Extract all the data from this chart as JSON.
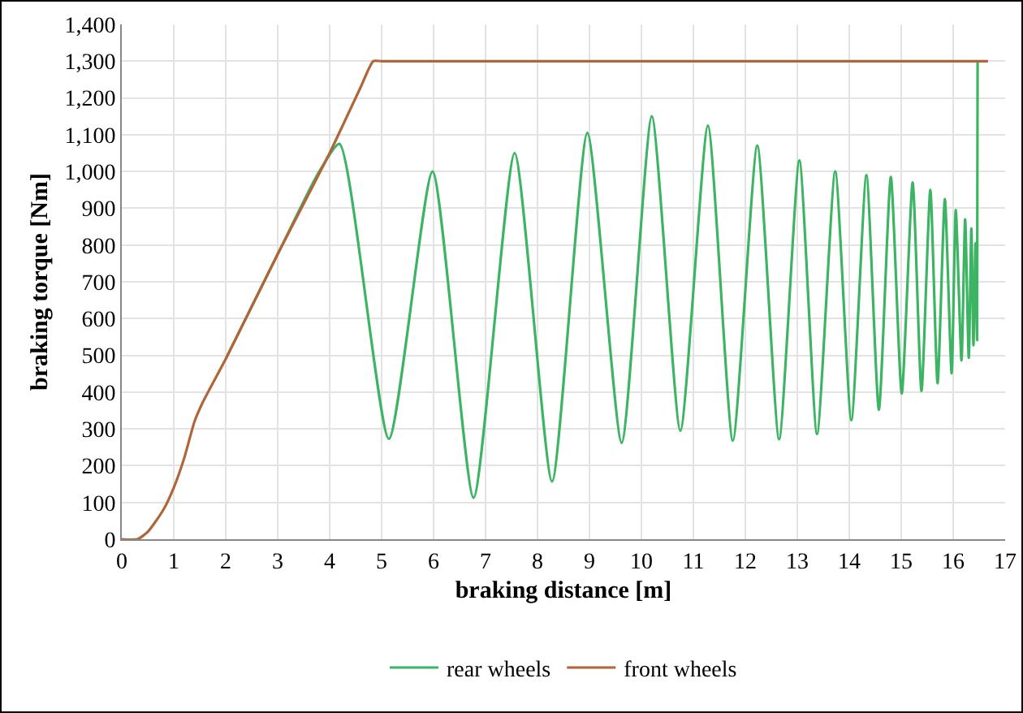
{
  "chart_data": {
    "type": "line",
    "xlabel": "braking distance [m]",
    "ylabel": "braking torque [Nm]",
    "xlim": [
      0,
      17
    ],
    "xticks": [
      0,
      1,
      2,
      3,
      4,
      5,
      6,
      7,
      8,
      9,
      10,
      11,
      12,
      13,
      14,
      15,
      16,
      17
    ],
    "ylim": [
      0,
      1400
    ],
    "yticks": [
      {
        "value": 0,
        "label": "0"
      },
      {
        "value": 100,
        "label": "100"
      },
      {
        "value": 200,
        "label": "200"
      },
      {
        "value": 300,
        "label": "300"
      },
      {
        "value": 400,
        "label": "400"
      },
      {
        "value": 500,
        "label": "500"
      },
      {
        "value": 600,
        "label": "600"
      },
      {
        "value": 700,
        "label": "700"
      },
      {
        "value": 800,
        "label": "800"
      },
      {
        "value": 900,
        "label": "900"
      },
      {
        "value": 1000,
        "label": "1,000"
      },
      {
        "value": 1100,
        "label": "1,100"
      },
      {
        "value": 1200,
        "label": "1,200"
      },
      {
        "value": 1300,
        "label": "1,300"
      },
      {
        "value": 1400,
        "label": "1,400"
      }
    ],
    "grid": true,
    "legend": "bottom",
    "marker": "none",
    "line_style": "solid",
    "series": [
      {
        "name": "rear wheels",
        "color": "#3cb464",
        "x": [
          2,
          3,
          3.8,
          4.19,
          5.14,
          5.98,
          6.77,
          7.56,
          8.28,
          8.96,
          9.62,
          10.2,
          10.75,
          11.28,
          11.76,
          12.23,
          12.65,
          13.04,
          13.38,
          13.73,
          14.04,
          14.33,
          14.57,
          14.8,
          15.01,
          15.22,
          15.39,
          15.56,
          15.7,
          15.84,
          15.97,
          16.05,
          16.16,
          16.23,
          16.3,
          16.35,
          16.39,
          16.43,
          16.46,
          16.47
        ],
        "values": [
          490,
          775,
          1000,
          1075,
          273,
          1000,
          113,
          1050,
          157,
          1105,
          262,
          1150,
          295,
          1125,
          268,
          1070,
          272,
          1030,
          286,
          1000,
          324,
          990,
          352,
          985,
          396,
          970,
          403,
          950,
          424,
          925,
          451,
          895,
          486,
          870,
          493,
          845,
          527,
          805,
          541,
          1300
        ]
      },
      {
        "name": "front wheels",
        "color": "#b0653a",
        "x": [
          0,
          0.3,
          0.5,
          0.8,
          1.0,
          1.2,
          1.4,
          1.55,
          2,
          3,
          4,
          4.6,
          4.84,
          5.0,
          16.67
        ],
        "values": [
          0,
          0,
          20,
          80,
          140,
          220,
          320,
          370,
          490,
          775,
          1050,
          1230,
          1300,
          1300,
          1300
        ]
      }
    ]
  }
}
